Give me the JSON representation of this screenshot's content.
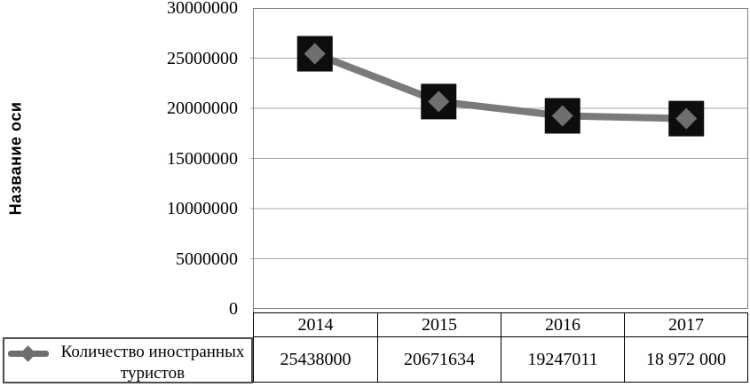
{
  "page": {
    "background": "#ffffff"
  },
  "chart_data": {
    "type": "line",
    "title": "",
    "xlabel": "",
    "ylabel": "Название оси",
    "categories": [
      "2014",
      "2015",
      "2016",
      "2017"
    ],
    "series": [
      {
        "name": "Количество иностранных туристов",
        "values": [
          25438000,
          20671634,
          19247011,
          18972000
        ],
        "display_values": [
          "25438000",
          "20671634",
          "19247011",
          "18 972 000"
        ]
      }
    ],
    "ylim": [
      0,
      30000000
    ],
    "ytick_step": 5000000,
    "ytick_labels_top_to_bottom": [
      "30000000",
      "25000000",
      "20000000",
      "15000000",
      "10000000",
      "5000000",
      "0"
    ],
    "grid": true,
    "legend_position": "bottom-left",
    "data_table_shown": true,
    "marker_style": "black-square-with-gray-diamond"
  },
  "colors": {
    "line": "#7a7a7a",
    "marker_square": "#0d0d0d",
    "marker_diamond": "#6f6f6f",
    "gridline": "#a6a6a6",
    "plot_border": "#808080",
    "table_border": "#000000",
    "legend_border": "#4d4d4d",
    "text": "#000000"
  }
}
